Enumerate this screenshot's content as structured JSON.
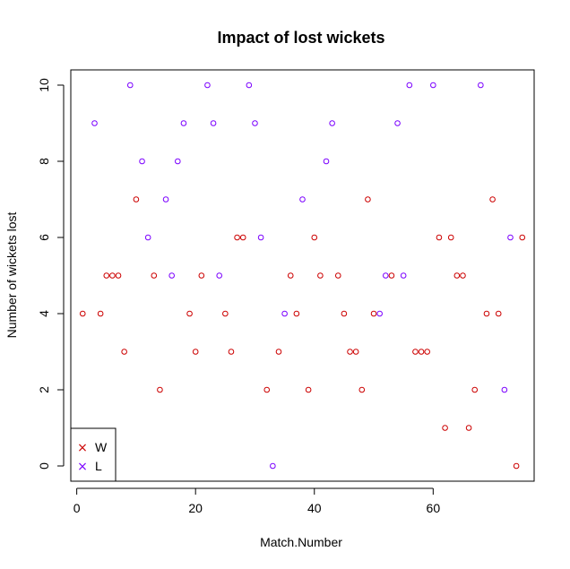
{
  "colors": {
    "W": "#cc0000",
    "L": "#7b00ff",
    "axis": "#000000"
  },
  "chart_data": {
    "type": "scatter",
    "title": "Impact of lost wickets",
    "xlabel": "Match.Number",
    "ylabel": "Number of wickets lost",
    "xlim": [
      -1,
      77
    ],
    "ylim": [
      -0.4,
      10.4
    ],
    "xticks": [
      0,
      20,
      40,
      60
    ],
    "yticks": [
      0,
      2,
      4,
      6,
      8,
      10
    ],
    "grid": false,
    "legend": {
      "position": "bottom-left",
      "entries": [
        "W",
        "L"
      ],
      "marker": "×"
    },
    "series": [
      {
        "name": "W",
        "x": [
          1,
          4,
          5,
          6,
          7,
          8,
          10,
          13,
          14,
          19,
          20,
          21,
          25,
          26,
          27,
          28,
          32,
          34,
          36,
          37,
          39,
          40,
          41,
          44,
          45,
          46,
          47,
          48,
          49,
          50,
          53,
          57,
          58,
          59,
          61,
          62,
          63,
          64,
          65,
          66,
          67,
          69,
          70,
          71,
          74,
          75
        ],
        "y": [
          4,
          4,
          5,
          5,
          5,
          3,
          7,
          5,
          2,
          4,
          3,
          5,
          4,
          3,
          6,
          6,
          2,
          3,
          5,
          4,
          2,
          6,
          5,
          5,
          4,
          3,
          3,
          2,
          7,
          4,
          5,
          3,
          3,
          3,
          6,
          1,
          6,
          5,
          5,
          1,
          2,
          4,
          7,
          4,
          0,
          6
        ]
      },
      {
        "name": "L",
        "x": [
          3,
          9,
          11,
          12,
          15,
          16,
          17,
          18,
          22,
          23,
          24,
          29,
          30,
          31,
          33,
          35,
          38,
          42,
          43,
          51,
          52,
          54,
          55,
          56,
          60,
          68,
          72,
          73
        ],
        "y": [
          9,
          10,
          8,
          6,
          7,
          5,
          8,
          9,
          10,
          9,
          5,
          10,
          9,
          6,
          0,
          4,
          7,
          8,
          9,
          4,
          5,
          9,
          5,
          10,
          10,
          10,
          2,
          6
        ]
      }
    ]
  }
}
